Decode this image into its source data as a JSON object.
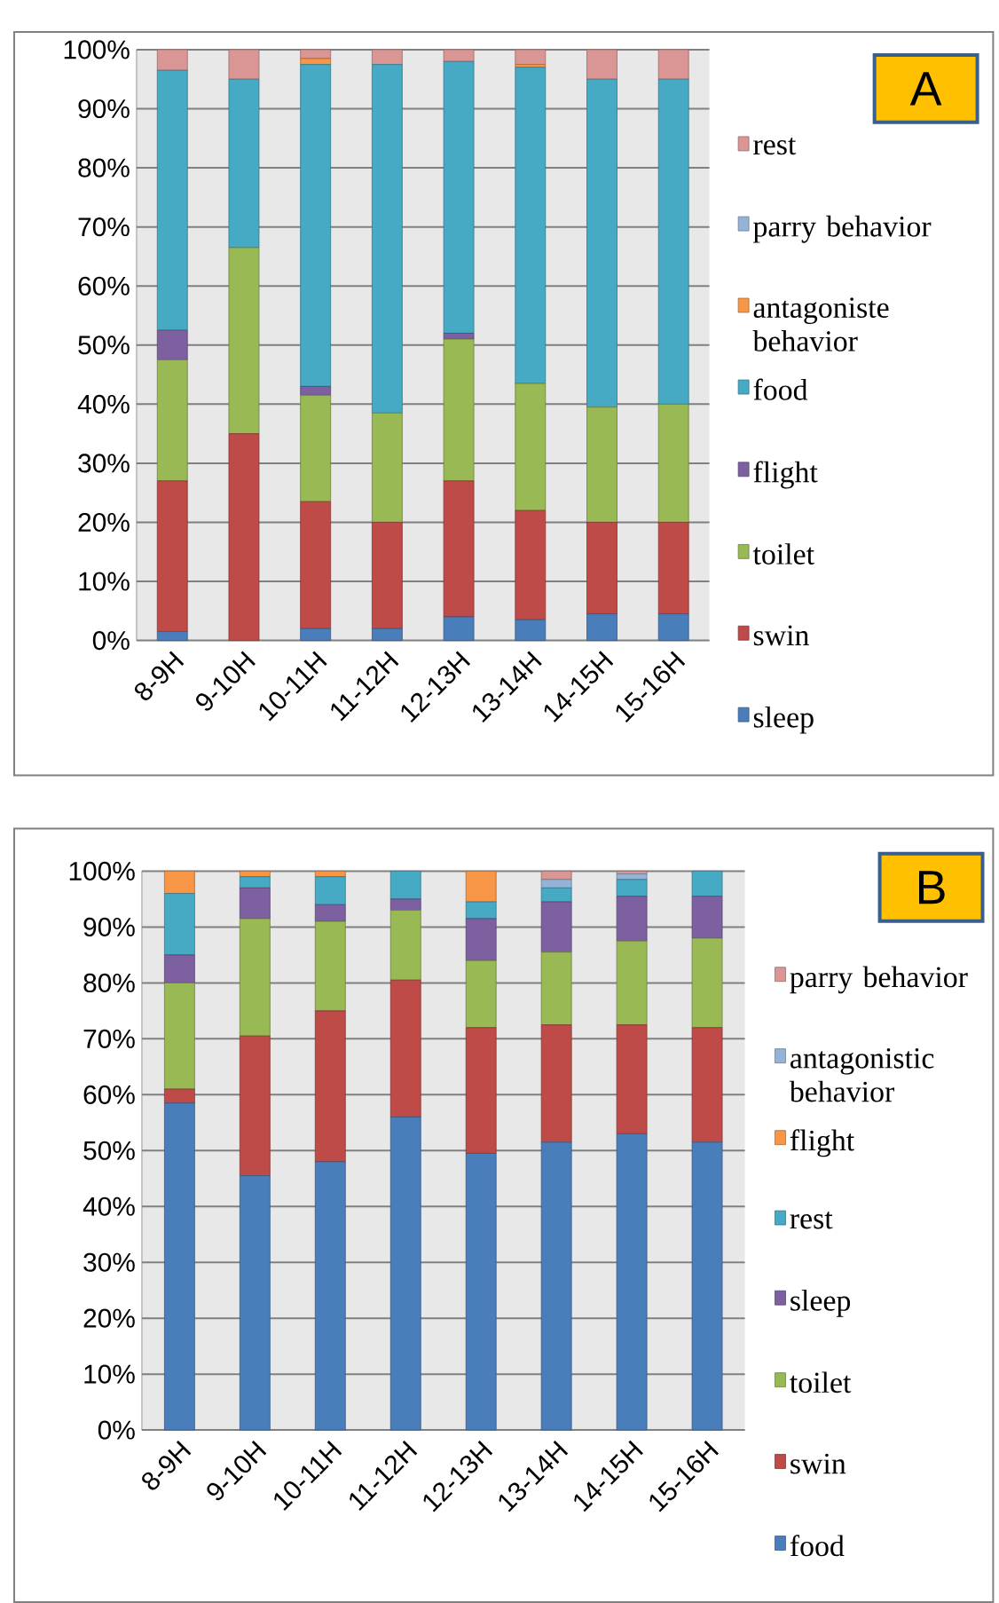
{
  "chart_data": [
    {
      "type": "bar",
      "stacked": true,
      "annotations": [
        "A"
      ],
      "categories": [
        "8-9H",
        "9-10H",
        "10-11H",
        "11-12H",
        "12-13H",
        "13-14H",
        "14-15H",
        "15-16H"
      ],
      "series": [
        {
          "name": "sleep",
          "color": "#4a7ebb",
          "values": [
            1.5,
            0,
            2,
            2,
            4,
            3.5,
            4.5,
            4.5
          ]
        },
        {
          "name": "swin",
          "color": "#be4b48",
          "values": [
            25.5,
            35,
            21.5,
            18,
            23,
            18.5,
            15.5,
            15.5
          ]
        },
        {
          "name": "toilet",
          "color": "#98b954",
          "values": [
            20.5,
            31.5,
            18,
            18.5,
            24,
            21.5,
            19.5,
            20
          ]
        },
        {
          "name": "flight",
          "color": "#7d60a0",
          "values": [
            5,
            0,
            1.5,
            0,
            1,
            0,
            0,
            0
          ]
        },
        {
          "name": "food",
          "color": "#46aac5",
          "values": [
            44,
            28.5,
            54.5,
            59,
            46,
            53.5,
            55.5,
            55
          ]
        },
        {
          "name": "antagoniste behavior",
          "color": "#f79646",
          "values": [
            0,
            0,
            1,
            0,
            0,
            0.5,
            0,
            0
          ]
        },
        {
          "name": "parry behavior",
          "color": "#95b3d7",
          "values": [
            0,
            0,
            0,
            0,
            0,
            0,
            0,
            0
          ]
        },
        {
          "name": "rest",
          "color": "#d99694",
          "values": [
            3.5,
            5,
            1.5,
            2.5,
            2,
            2.5,
            5,
            5
          ]
        }
      ],
      "ylim": [
        0,
        100
      ],
      "yticks": [
        {
          "value": 0,
          "label": "0%"
        },
        {
          "value": 10,
          "label": "10%"
        },
        {
          "value": 20,
          "label": "20%"
        },
        {
          "value": 30,
          "label": "30%"
        },
        {
          "value": 40,
          "label": "40%"
        },
        {
          "value": 50,
          "label": "50%"
        },
        {
          "value": 60,
          "label": "60%"
        },
        {
          "value": 70,
          "label": "70%"
        },
        {
          "value": 80,
          "label": "80%"
        },
        {
          "value": 90,
          "label": "90%"
        },
        {
          "value": 100,
          "label": "100%"
        }
      ],
      "grid": "y",
      "legend": "right"
    },
    {
      "type": "bar",
      "stacked": true,
      "annotations": [
        "B"
      ],
      "categories": [
        "8-9H",
        "9-10H",
        "10-11H",
        "11-12H",
        "12-13H",
        "13-14H",
        "14-15H",
        "15-16H"
      ],
      "series": [
        {
          "name": "food",
          "color": "#4a7ebb",
          "values": [
            58.5,
            45.5,
            48,
            56,
            49.5,
            51.5,
            53,
            51.5
          ]
        },
        {
          "name": "swin",
          "color": "#be4b48",
          "values": [
            2.5,
            25,
            27,
            24.5,
            22.5,
            21,
            19.5,
            20.5
          ]
        },
        {
          "name": "toilet",
          "color": "#98b954",
          "values": [
            19,
            21,
            16,
            12.5,
            12,
            13,
            15,
            16
          ]
        },
        {
          "name": "sleep",
          "color": "#7d60a0",
          "values": [
            5,
            5.5,
            3,
            2,
            7.5,
            9,
            8,
            7.5
          ]
        },
        {
          "name": "rest",
          "color": "#46aac5",
          "values": [
            11,
            2,
            5,
            5,
            3,
            2.5,
            3,
            4.5
          ]
        },
        {
          "name": "flight",
          "color": "#f79646",
          "values": [
            4,
            1,
            1,
            0,
            5.5,
            0,
            0,
            0
          ]
        },
        {
          "name": "antagonistic behavior",
          "color": "#95b3d7",
          "values": [
            0,
            0,
            0,
            0,
            0,
            1.5,
            1,
            0
          ]
        },
        {
          "name": "parry behavior",
          "color": "#d99694",
          "values": [
            0,
            0,
            0,
            0,
            0,
            1.5,
            0.5,
            0
          ]
        }
      ],
      "ylim": [
        0,
        100
      ],
      "yticks": [
        {
          "value": 0,
          "label": "0%"
        },
        {
          "value": 10,
          "label": "10%"
        },
        {
          "value": 20,
          "label": "20%"
        },
        {
          "value": 30,
          "label": "30%"
        },
        {
          "value": 40,
          "label": "40%"
        },
        {
          "value": 50,
          "label": "50%"
        },
        {
          "value": 60,
          "label": "60%"
        },
        {
          "value": 70,
          "label": "70%"
        },
        {
          "value": 80,
          "label": "80%"
        },
        {
          "value": 90,
          "label": "90%"
        },
        {
          "value": 100,
          "label": "100%"
        }
      ],
      "grid": "y",
      "legend": "right"
    }
  ]
}
